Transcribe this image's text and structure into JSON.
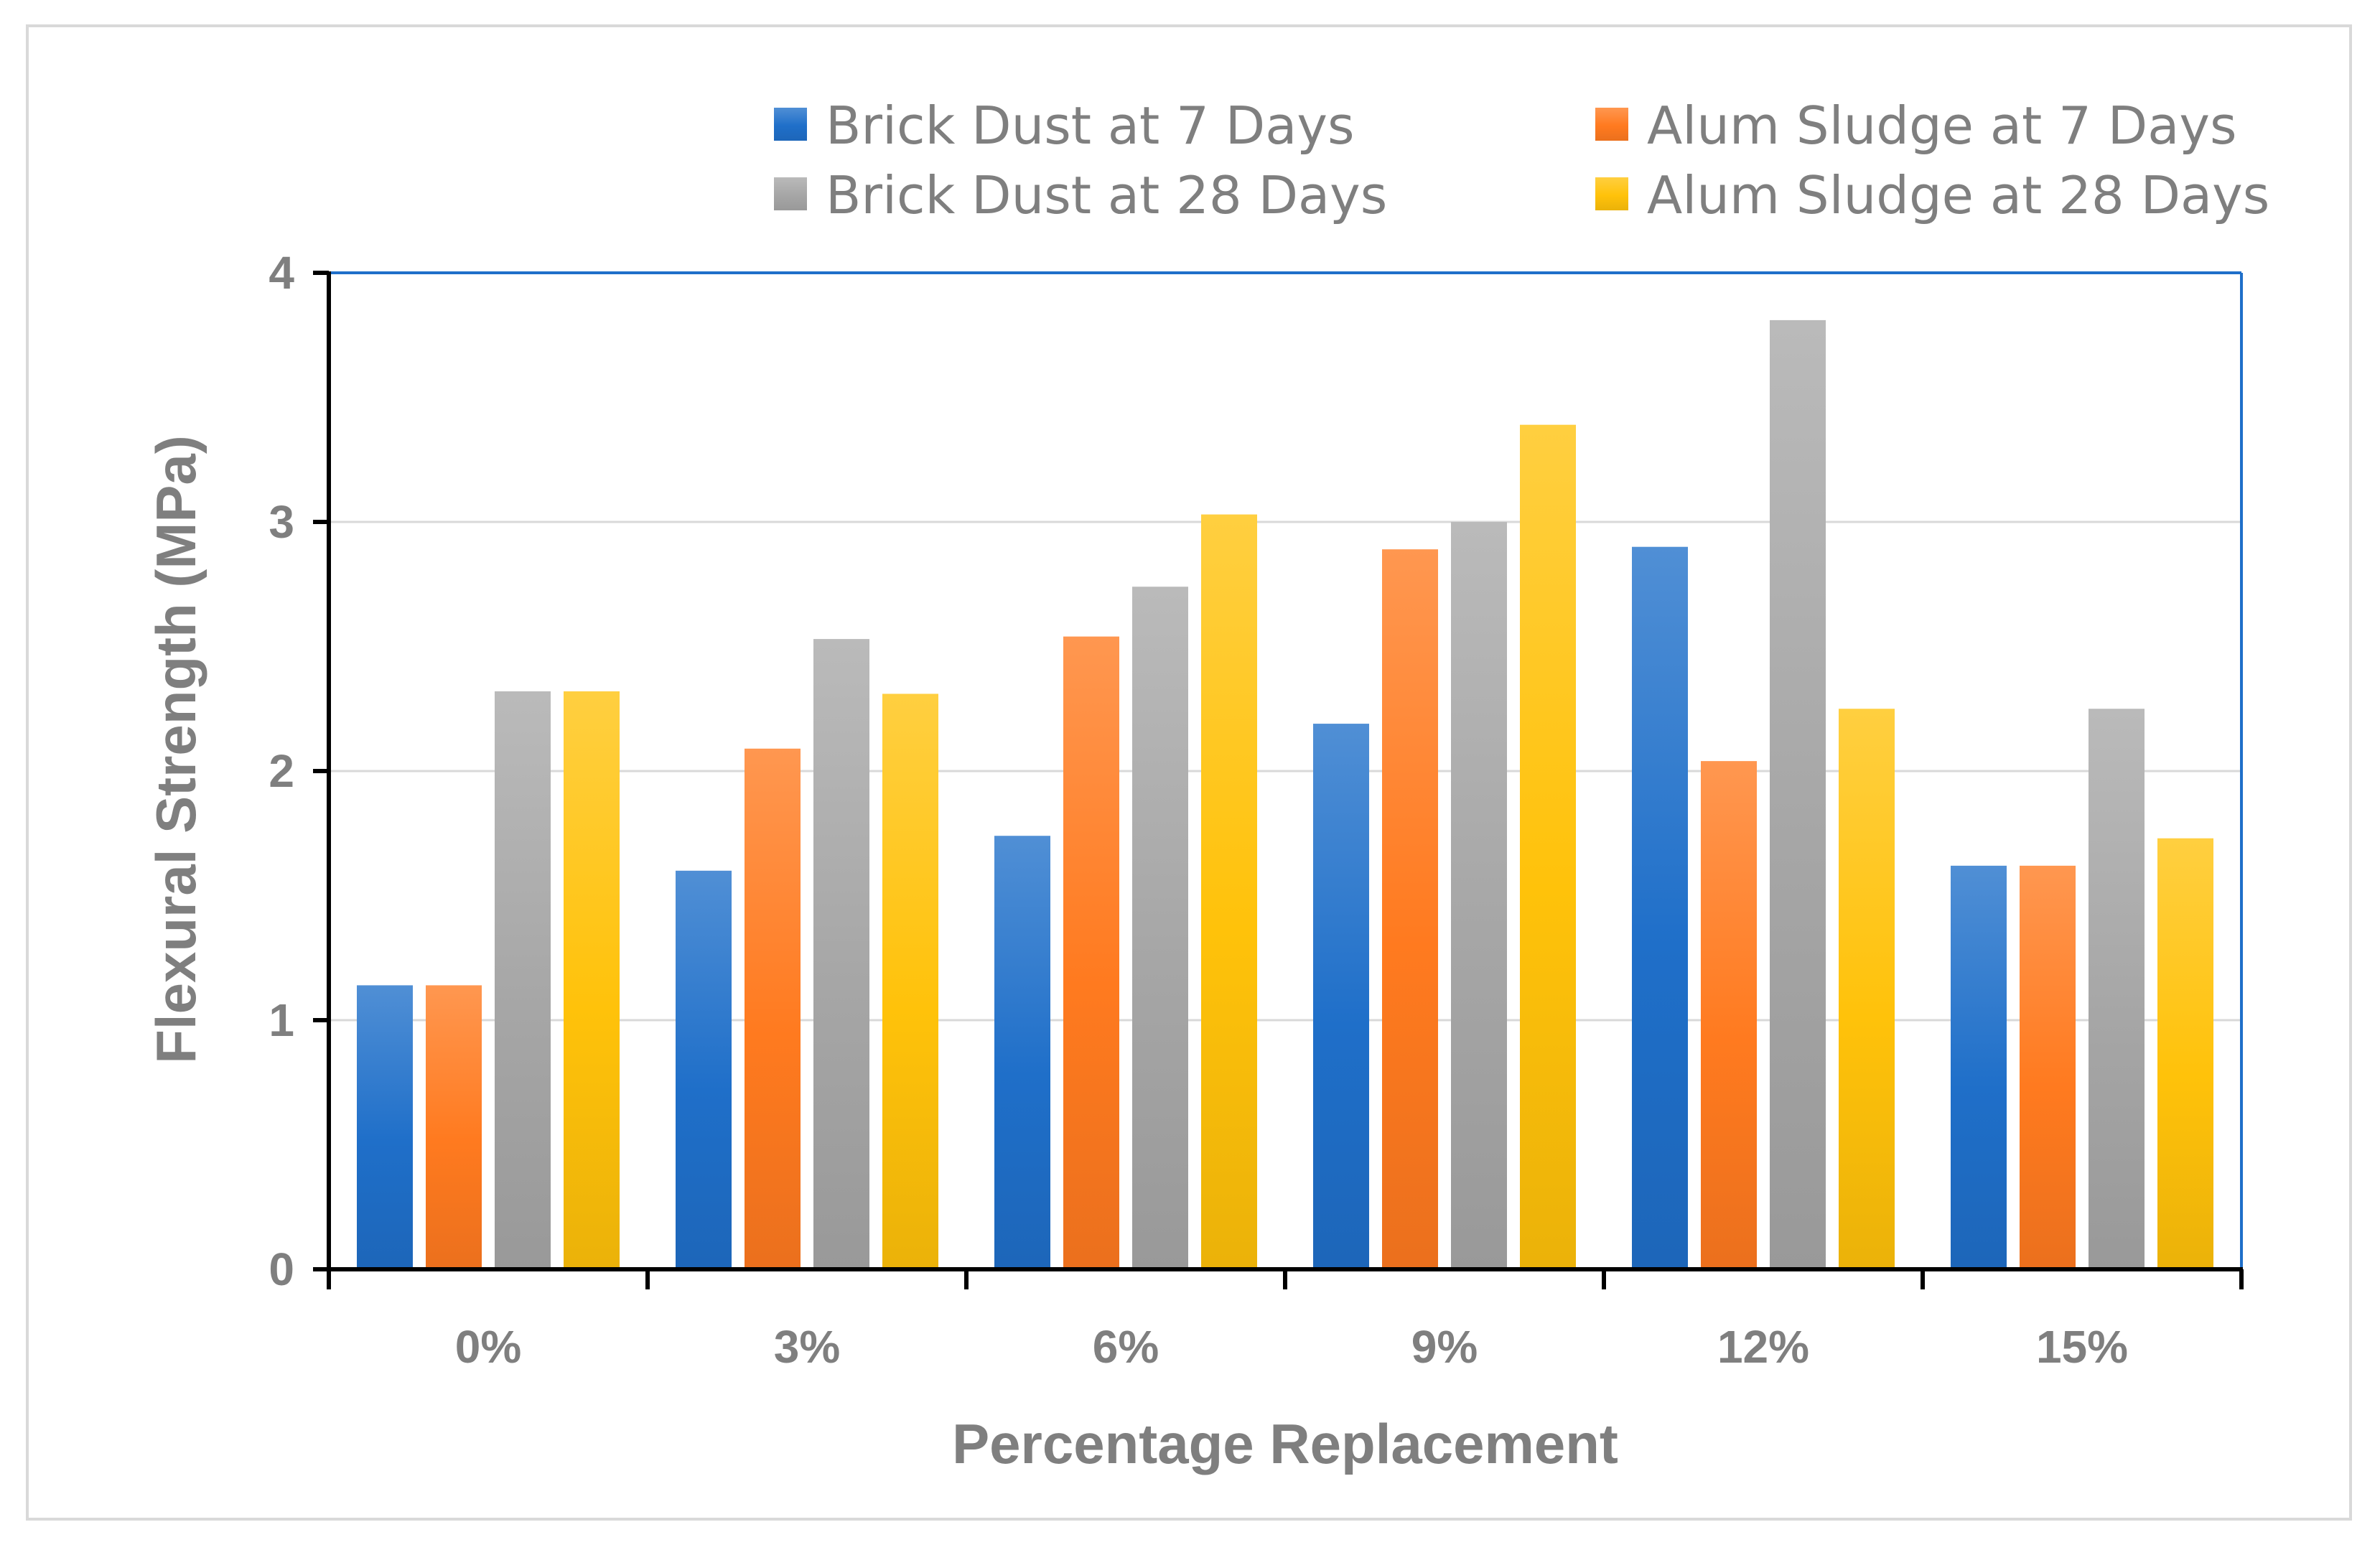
{
  "chart_data": {
    "type": "bar",
    "title": "",
    "xlabel": "Percentage Replacement",
    "ylabel": "Flexural Strength (MPa)",
    "ylim": [
      0,
      4
    ],
    "yticks": [
      "0",
      "1",
      "2",
      "3",
      "4"
    ],
    "categories": [
      "0%",
      "3%",
      "6%",
      "9%",
      "12%",
      "15%"
    ],
    "series": [
      {
        "name": "Brick Dust at 7 Days",
        "color": "#1f6fc9",
        "values": [
          1.14,
          1.6,
          1.74,
          2.19,
          2.9,
          1.62
        ]
      },
      {
        "name": "Alum Sludge at 7 Days",
        "color": "#ff7a1f",
        "values": [
          1.14,
          2.09,
          2.54,
          2.89,
          2.04,
          1.62
        ]
      },
      {
        "name": "Brick Dust at 28 Days",
        "color": "#a6a6a6",
        "values": [
          2.32,
          2.53,
          2.74,
          3.0,
          3.81,
          2.25
        ]
      },
      {
        "name": "Alum Sludge at 28 Days",
        "color": "#ffc20a",
        "values": [
          2.32,
          2.31,
          3.03,
          3.39,
          2.25,
          1.73
        ]
      }
    ],
    "legend_position": "top",
    "grid": true
  }
}
